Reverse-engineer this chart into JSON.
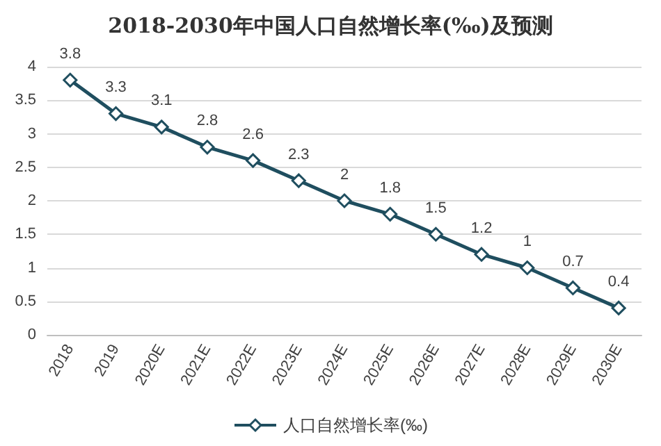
{
  "chart_data": {
    "type": "line",
    "title": "2018-2030年中国人口自然增长率(‰)及预测",
    "categories": [
      "2018",
      "2019",
      "2020E",
      "2021E",
      "2022E",
      "2023E",
      "2024E",
      "2025E",
      "2026E",
      "2027E",
      "2028E",
      "2029E",
      "2030E"
    ],
    "series": [
      {
        "name": "人口自然增长率(‰)",
        "color": "#1f4e5f",
        "values": [
          3.8,
          3.3,
          3.1,
          2.8,
          2.6,
          2.3,
          2,
          1.8,
          1.5,
          1.2,
          1,
          0.7,
          0.4
        ]
      }
    ],
    "ylim": [
      0,
      4
    ],
    "yticks": [
      0,
      0.5,
      1,
      1.5,
      2,
      2.5,
      3,
      3.5,
      4
    ],
    "grid": "y",
    "legend": "bottom",
    "marker": "diamond",
    "line_style": "solid",
    "data_labels": true
  }
}
